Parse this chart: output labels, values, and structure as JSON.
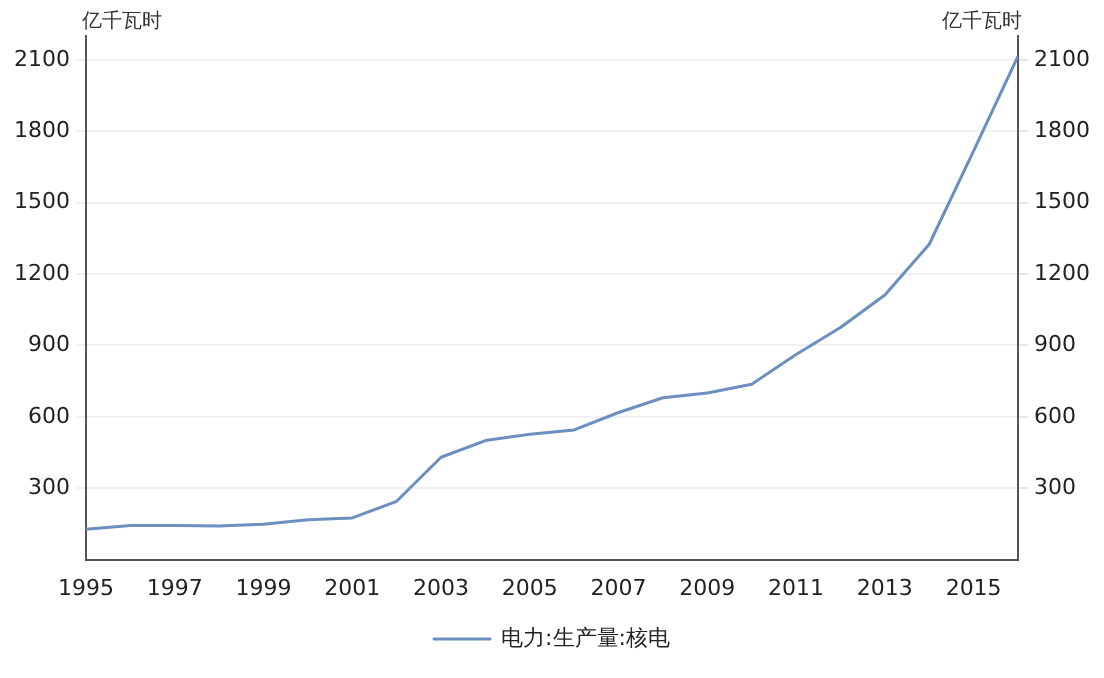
{
  "chart_data": {
    "type": "line",
    "ylabel": "亿千瓦时",
    "y2label": "亿千瓦时",
    "x": [
      1995,
      1996,
      1997,
      1998,
      1999,
      2000,
      2001,
      2002,
      2003,
      2004,
      2005,
      2006,
      2007,
      2008,
      2009,
      2010,
      2011,
      2012,
      2013,
      2014,
      2015,
      2016
    ],
    "series": [
      {
        "name": "电力:生产量:核电",
        "color": "#6a8fc0",
        "values": [
          128,
          143,
          143,
          141,
          149,
          167,
          175,
          245,
          430,
          500,
          527,
          545,
          618,
          680,
          700,
          737,
          862,
          975,
          1112,
          1325,
          1717,
          2115
        ]
      }
    ],
    "xlim": [
      1995,
      2016
    ],
    "xticks": [
      1995,
      1997,
      1999,
      2001,
      2003,
      2005,
      2007,
      2009,
      2011,
      2013,
      2015
    ],
    "ylim": [
      0,
      2200
    ],
    "yticks": [
      300,
      600,
      900,
      1200,
      1500,
      1800,
      2100
    ],
    "y2lim": [
      0,
      2200
    ],
    "y2ticks": [
      300,
      600,
      900,
      1200,
      1500,
      1800,
      2100
    ],
    "grid": "y",
    "legend": "bottom",
    "marker": "none",
    "line_style": "solid"
  }
}
